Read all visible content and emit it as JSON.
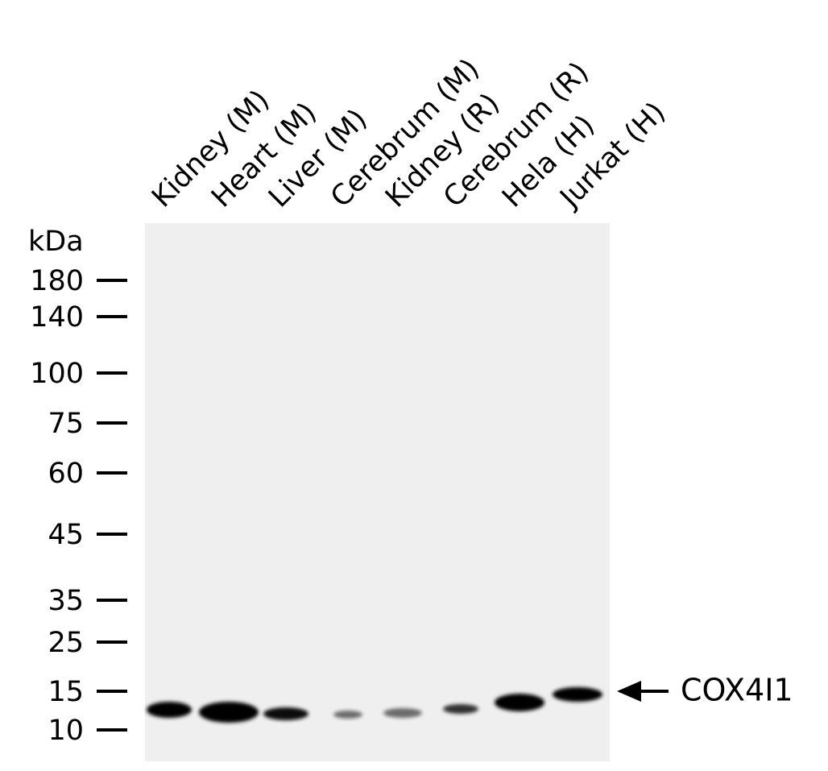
{
  "unit_label": "kDa",
  "lanes": [
    "Kidney (M)",
    "Heart (M)",
    "Liver (M)",
    "Cerebrum (M)",
    "Kidney (R)",
    "Cerebrum (R)",
    "Hela (H)",
    "Jurkat (H)"
  ],
  "markers": [
    "180",
    "140",
    "100",
    "75",
    "60",
    "45",
    "35",
    "25",
    "15",
    "10"
  ],
  "target": "COX4I1"
}
